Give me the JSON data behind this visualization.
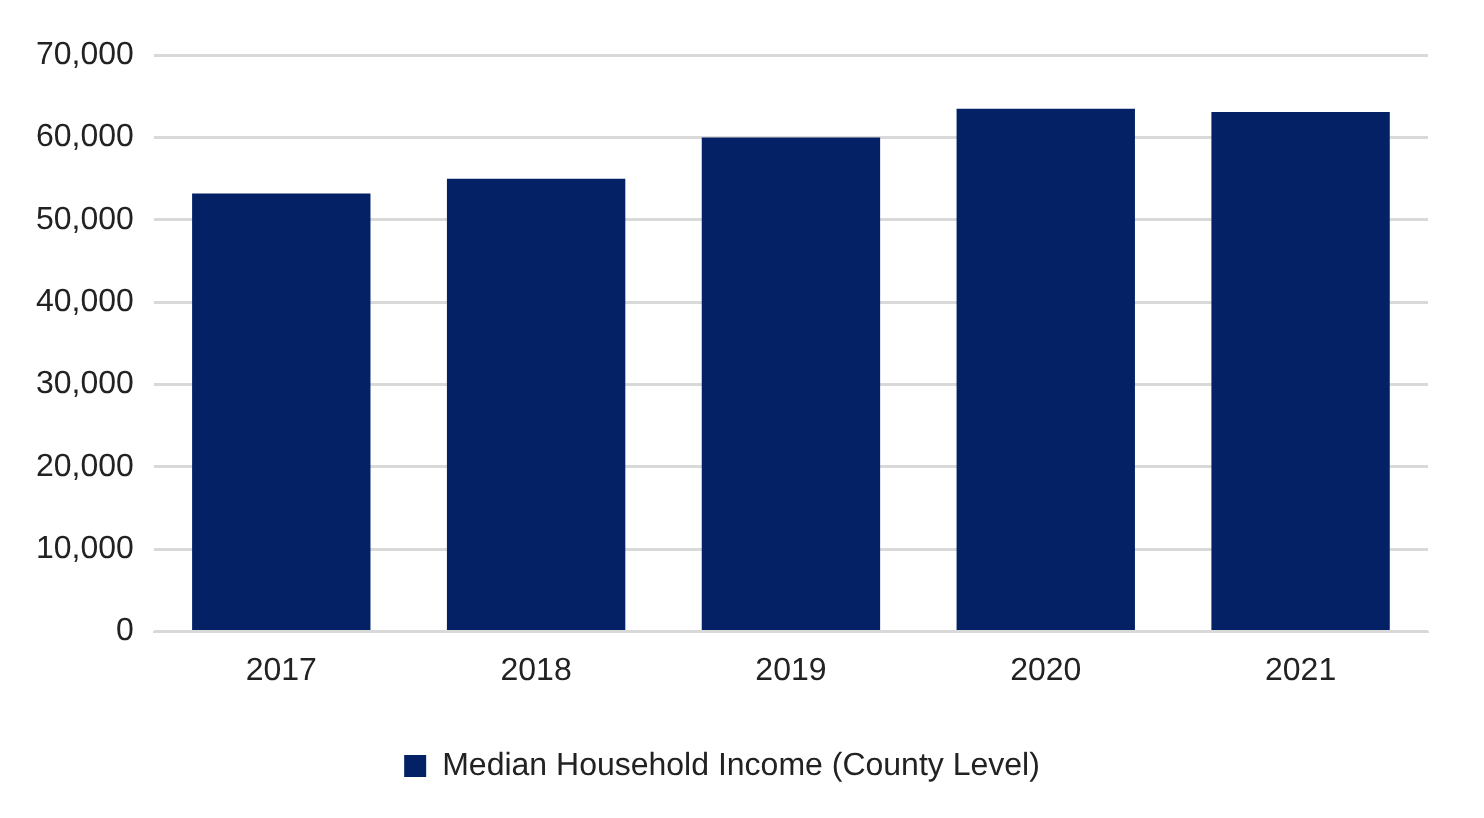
{
  "chart_data": {
    "type": "bar",
    "categories": [
      "2017",
      "2018",
      "2019",
      "2020",
      "2021"
    ],
    "series": [
      {
        "name": "Median Household Income (County Level)",
        "color": "#042166",
        "values": [
          53200,
          55000,
          60000,
          63500,
          63100
        ]
      }
    ],
    "ylim": [
      0,
      70000
    ],
    "yticks": [
      {
        "value": 0,
        "label": "0"
      },
      {
        "value": 10000,
        "label": "10,000"
      },
      {
        "value": 20000,
        "label": "20,000"
      },
      {
        "value": 30000,
        "label": "30,000"
      },
      {
        "value": 40000,
        "label": "40,000"
      },
      {
        "value": 50000,
        "label": "50,000"
      },
      {
        "value": 60000,
        "label": "60,000"
      },
      {
        "value": 70000,
        "label": "70,000"
      }
    ],
    "grid": "y",
    "legend": "bottom"
  }
}
